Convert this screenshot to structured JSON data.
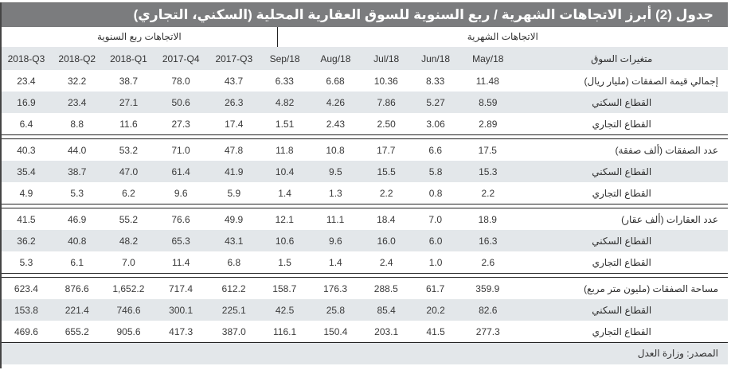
{
  "title": "جدول (2) أبرز الاتجاهات الشهرية / ربع السنوية للسوق العقارية المحلية (السكني، التجاري)",
  "groups": {
    "quarterly": "الاتجاهات ربع السنوية",
    "monthly": "الاتجاهات الشهرية"
  },
  "header": {
    "label": "متغيرات السوق",
    "columns_ltr": [
      "2018-Q3",
      "2018-Q2",
      "2018-Q1",
      "2017-Q4",
      "2017-Q3",
      "Sep/18",
      "Aug/18",
      "Jul/18",
      "Jun/18",
      "May/18"
    ]
  },
  "sections": [
    {
      "rows": [
        {
          "label": "إجمالي قيمة الصفقات (مليار ريال)",
          "main": true,
          "values": [
            "23.4",
            "32.2",
            "38.7",
            "78.0",
            "43.7",
            "6.33",
            "6.68",
            "10.36",
            "8.33",
            "11.48"
          ]
        },
        {
          "label": "القطاع السكني",
          "values": [
            "16.9",
            "23.4",
            "27.1",
            "50.6",
            "26.3",
            "4.82",
            "4.26",
            "7.86",
            "5.27",
            "8.59"
          ]
        },
        {
          "label": "القطاع التجاري",
          "values": [
            "6.4",
            "8.8",
            "11.6",
            "27.3",
            "17.4",
            "1.51",
            "2.43",
            "2.50",
            "3.06",
            "2.89"
          ]
        }
      ]
    },
    {
      "rows": [
        {
          "label": "عدد الصفقات (ألف صفقة)",
          "main": true,
          "values": [
            "40.3",
            "44.0",
            "53.2",
            "71.0",
            "47.8",
            "11.8",
            "10.8",
            "17.7",
            "6.6",
            "17.5"
          ]
        },
        {
          "label": "القطاع السكني",
          "values": [
            "35.4",
            "38.7",
            "47.0",
            "61.4",
            "41.9",
            "10.4",
            "9.5",
            "15.5",
            "5.8",
            "15.3"
          ]
        },
        {
          "label": "القطاع التجاري",
          "values": [
            "4.9",
            "5.3",
            "6.2",
            "9.6",
            "5.9",
            "1.4",
            "1.3",
            "2.2",
            "0.8",
            "2.2"
          ]
        }
      ]
    },
    {
      "rows": [
        {
          "label": "عدد العقارات (ألف عقار)",
          "main": true,
          "values": [
            "41.5",
            "46.9",
            "55.2",
            "76.6",
            "49.9",
            "12.1",
            "11.1",
            "18.4",
            "7.0",
            "18.9"
          ]
        },
        {
          "label": "القطاع السكني",
          "values": [
            "36.2",
            "40.8",
            "48.2",
            "65.3",
            "43.1",
            "10.6",
            "9.6",
            "16.0",
            "6.0",
            "16.3"
          ]
        },
        {
          "label": "القطاع التجاري",
          "values": [
            "5.3",
            "6.1",
            "7.0",
            "11.4",
            "6.8",
            "1.5",
            "1.4",
            "2.4",
            "1.0",
            "2.6"
          ]
        }
      ]
    },
    {
      "rows": [
        {
          "label": "مساحة الصفقات (مليون متر مربع)",
          "main": true,
          "values": [
            "623.4",
            "876.6",
            "1,652.2",
            "717.4",
            "612.2",
            "158.7",
            "176.3",
            "288.5",
            "61.7",
            "359.9"
          ]
        },
        {
          "label": "القطاع السكني",
          "values": [
            "153.8",
            "221.4",
            "746.6",
            "300.1",
            "225.1",
            "42.5",
            "25.8",
            "85.4",
            "20.2",
            "82.6"
          ]
        },
        {
          "label": "القطاع التجاري",
          "values": [
            "469.6",
            "655.2",
            "905.6",
            "417.3",
            "387.0",
            "116.1",
            "150.4",
            "203.1",
            "41.5",
            "277.3"
          ]
        }
      ]
    }
  ],
  "source": "المصدر: وزارة العدل",
  "colors": {
    "title_bg": "#7b7c7e",
    "shade": "#e3e7ea",
    "rule": "#222222"
  }
}
